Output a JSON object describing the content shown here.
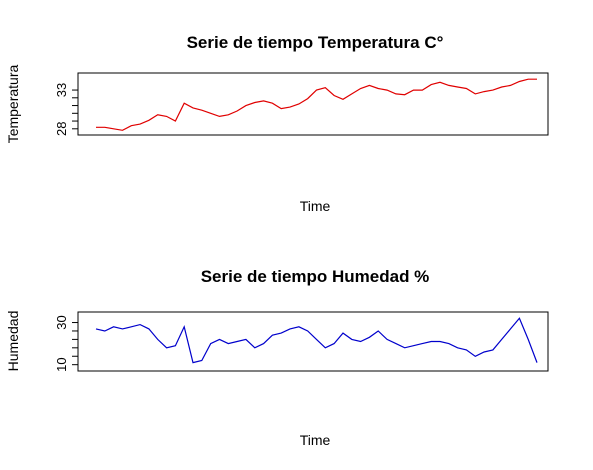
{
  "chart_data": [
    {
      "type": "line",
      "title": "Serie de tiempo Temperatura C°",
      "xlabel": "Time",
      "ylabel": "Temperatura",
      "ylim": [
        27.2,
        35.2
      ],
      "yticks": [
        28,
        33
      ],
      "grid": false,
      "color": "#e00000",
      "series": [
        {
          "x": [
            0,
            2,
            4,
            6,
            8,
            10,
            12,
            14,
            16,
            18,
            20,
            22,
            24,
            26,
            28,
            30,
            32,
            34,
            36,
            38,
            40,
            42,
            44,
            46,
            48,
            50,
            52,
            54,
            56,
            58,
            60,
            62,
            64,
            66,
            68,
            70,
            72,
            74,
            76,
            78,
            80,
            82,
            84,
            86,
            88,
            90,
            92,
            94,
            96,
            98,
            100
          ],
          "values": [
            28.2,
            28.2,
            28.0,
            27.8,
            28.4,
            28.6,
            29.1,
            29.8,
            29.6,
            29.0,
            31.3,
            30.7,
            30.4,
            30.0,
            29.6,
            29.8,
            30.3,
            31.0,
            31.4,
            31.6,
            31.3,
            30.6,
            30.8,
            31.2,
            31.9,
            33.0,
            33.3,
            32.3,
            31.8,
            32.5,
            33.2,
            33.6,
            33.2,
            33.0,
            32.5,
            32.4,
            33.0,
            33.0,
            33.7,
            34.0,
            33.6,
            33.4,
            33.2,
            32.5,
            32.8,
            33.0,
            33.4,
            33.6,
            34.1,
            34.4,
            34.4
          ]
        }
      ]
    },
    {
      "type": "line",
      "title": "Serie de tiempo  Humedad %",
      "xlabel": "Time",
      "ylabel": "Humedad",
      "ylim": [
        7,
        35
      ],
      "yticks": [
        10,
        30
      ],
      "grid": false,
      "color": "#0000cc",
      "series": [
        {
          "x": [
            0,
            2,
            4,
            6,
            8,
            10,
            12,
            14,
            16,
            18,
            20,
            22,
            24,
            26,
            28,
            30,
            32,
            34,
            36,
            38,
            40,
            42,
            44,
            46,
            48,
            50,
            52,
            54,
            56,
            58,
            60,
            62,
            64,
            66,
            68,
            70,
            72,
            74,
            76,
            78,
            80,
            82,
            84,
            86,
            88,
            90,
            92,
            94,
            96,
            98,
            100
          ],
          "values": [
            27,
            26,
            28,
            27,
            28,
            29,
            27,
            22,
            18,
            19,
            28,
            11,
            12,
            20,
            22,
            20,
            21,
            22,
            18,
            20,
            24,
            25,
            27,
            28,
            26,
            22,
            18,
            20,
            25,
            22,
            21,
            23,
            26,
            22,
            20,
            18,
            19,
            20,
            21,
            21,
            20,
            18,
            17,
            14,
            16,
            17,
            22,
            27,
            32,
            22,
            11
          ]
        }
      ]
    }
  ]
}
